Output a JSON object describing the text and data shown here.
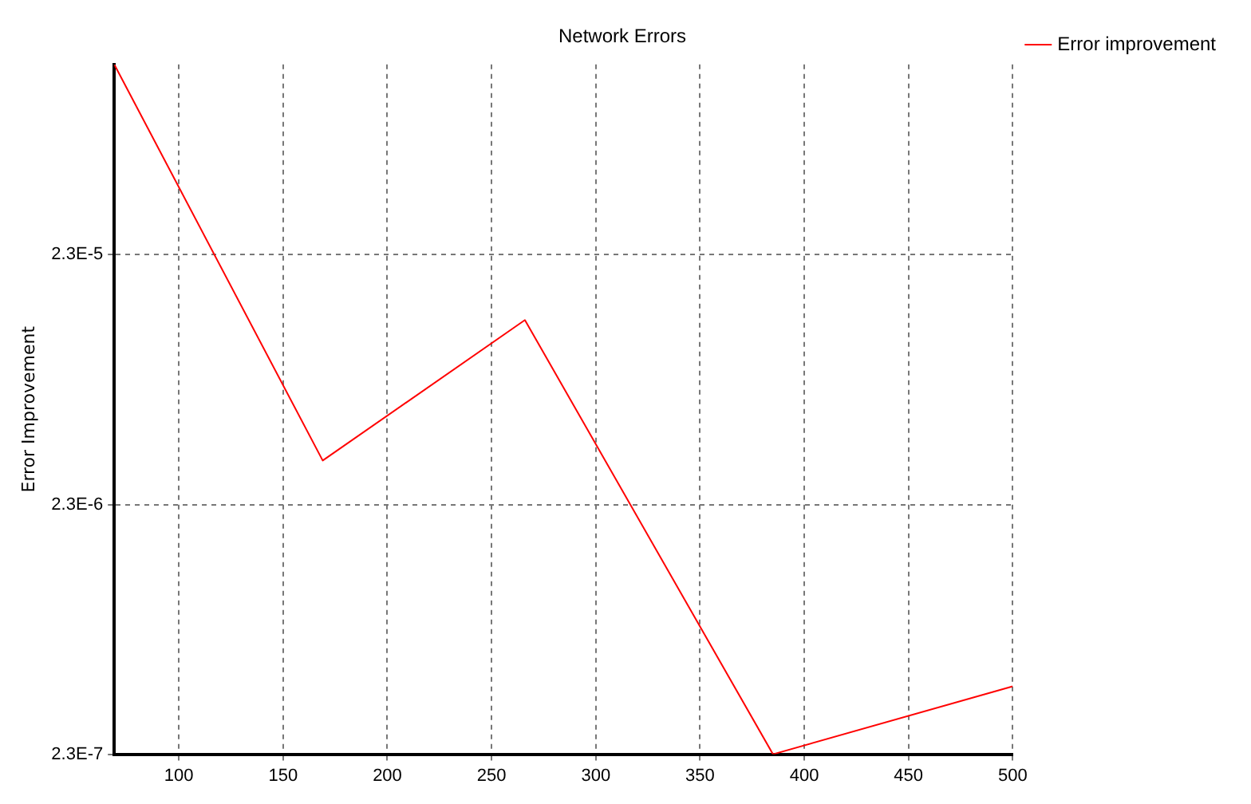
{
  "chart_data": {
    "type": "line",
    "title": "Network Errors",
    "ylabel": "Error Improvement",
    "x": [
      69,
      169,
      266,
      385,
      500
    ],
    "series": [
      {
        "name": "Error improvement",
        "color": "#ff0000",
        "values": [
          0.000133,
          3.45e-06,
          1.26e-05,
          2.3e-07,
          4.3e-07
        ]
      }
    ],
    "xlim": [
      69,
      500
    ],
    "xticks": [
      100,
      150,
      200,
      250,
      300,
      350,
      400,
      450,
      500
    ],
    "ylim": [
      2.3e-07,
      0.000133
    ],
    "yticks": [
      {
        "value": 2.3e-07,
        "label": "2.3E-7"
      },
      {
        "value": 2.3e-06,
        "label": "2.3E-6"
      },
      {
        "value": 2.3e-05,
        "label": "2.3E-5"
      }
    ],
    "log": "y",
    "grid": true,
    "legend": "top right",
    "marker": "none",
    "line_style": "solid"
  }
}
